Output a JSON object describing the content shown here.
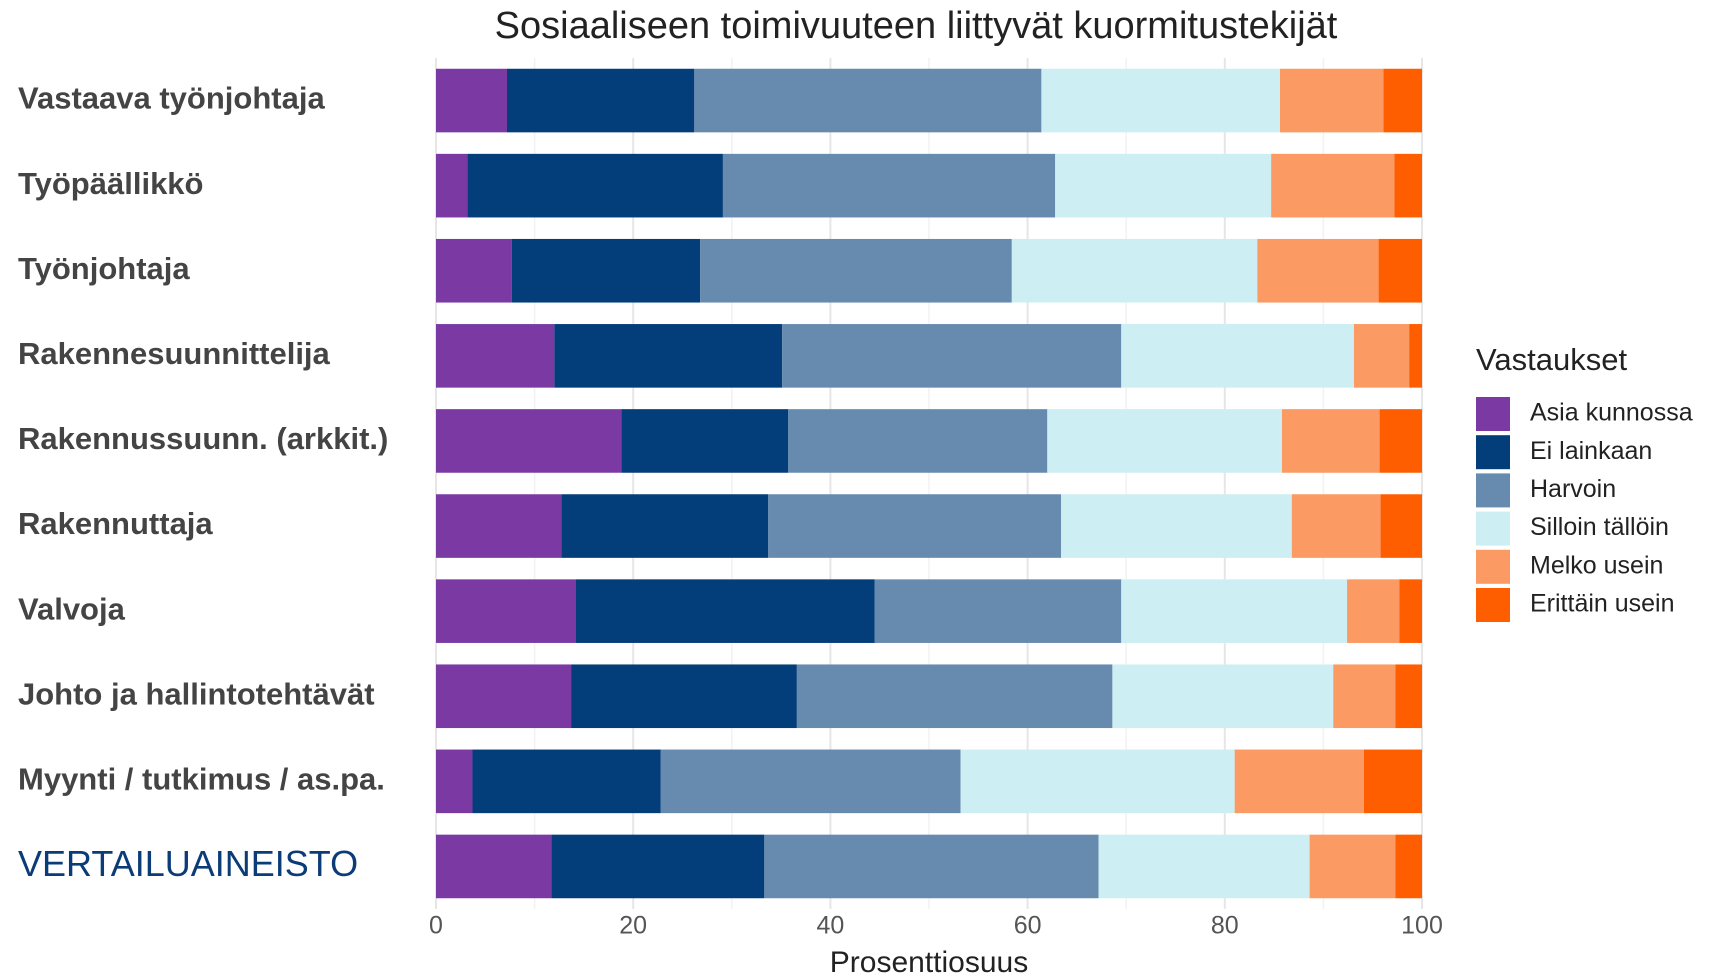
{
  "chart_data": {
    "type": "stacked_barh",
    "title": "Sosiaaliseen toimivuuteen liittyvät kuormitustekijät",
    "x_label": "Prosenttiosuus",
    "legend_title": "Vastaukset",
    "legend_position": "right",
    "grid": true,
    "xlim": [
      0,
      100
    ],
    "xticks": [
      0,
      20,
      40,
      60,
      80,
      100
    ],
    "categories": [
      "Vastaava työnjohtaja",
      "Työpäällikkö",
      "Työnjohtaja",
      "Rakennesuunnittelija",
      "Rakennussuunn. (arkkit.)",
      "Rakennuttaja",
      "Valvoja",
      "Johto ja hallintotehtävät",
      "Myynti / tutkimus / as.pa.",
      "VERTAILUAINEISTO"
    ],
    "series": [
      {
        "name": "Asia kunnossa",
        "color": "#7b3aa3",
        "values": [
          7.2,
          3.2,
          7.7,
          12.0,
          18.8,
          12.7,
          14.2,
          13.7,
          3.7,
          11.7
        ]
      },
      {
        "name": "Ei lainkaan",
        "color": "#033d7a",
        "values": [
          19.0,
          25.9,
          19.1,
          23.1,
          16.9,
          21.0,
          30.3,
          22.9,
          19.1,
          21.6
        ]
      },
      {
        "name": "Harvoin",
        "color": "#678aaf",
        "values": [
          35.2,
          33.7,
          31.6,
          34.4,
          26.3,
          29.7,
          25.0,
          32.0,
          30.4,
          33.9
        ]
      },
      {
        "name": "Silloin tällöin",
        "color": "#cdeef3",
        "values": [
          24.2,
          21.9,
          24.9,
          23.6,
          23.8,
          23.4,
          22.9,
          22.4,
          27.8,
          21.4
        ]
      },
      {
        "name": "Melko usein",
        "color": "#fb9a63",
        "values": [
          10.5,
          12.5,
          12.3,
          5.6,
          9.9,
          9.0,
          5.3,
          6.3,
          13.1,
          8.7
        ]
      },
      {
        "name": "Erittäin usein",
        "color": "#ff5e00",
        "values": [
          3.9,
          2.8,
          4.4,
          1.3,
          4.3,
          4.2,
          2.3,
          2.7,
          5.9,
          2.7
        ]
      }
    ]
  }
}
